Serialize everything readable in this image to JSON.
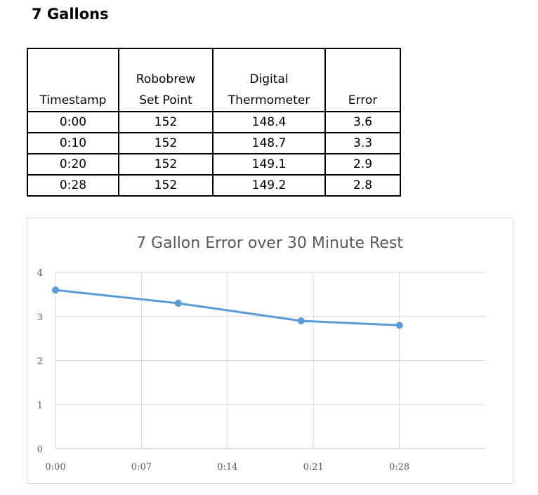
{
  "page": {
    "title": "7 Gallons"
  },
  "table": {
    "headers": [
      [
        "Timestamp"
      ],
      [
        "Robobrew",
        "Set Point"
      ],
      [
        "Digital",
        "Thermometer"
      ],
      [
        "Error"
      ]
    ],
    "rows": [
      [
        "0:00",
        "152",
        "148.4",
        "3.6"
      ],
      [
        "0:10",
        "152",
        "148.7",
        "3.3"
      ],
      [
        "0:20",
        "152",
        "149.1",
        "2.9"
      ],
      [
        "0:28",
        "152",
        "149.2",
        "2.8"
      ]
    ]
  },
  "chart_data": {
    "type": "line",
    "title": "7 Gallon Error over 30 Minute Rest",
    "xlabel": "",
    "ylabel": "",
    "x_unit": "minutes",
    "xlim": [
      0,
      35
    ],
    "ylim": [
      0,
      4
    ],
    "x_ticks": [
      0,
      7,
      14,
      21,
      28
    ],
    "x_tick_labels": [
      "0:00",
      "0:07",
      "0:14",
      "0:21",
      "0:28"
    ],
    "y_ticks": [
      0,
      1,
      2,
      3,
      4
    ],
    "y_tick_labels": [
      "0",
      "1",
      "2",
      "3",
      "4"
    ],
    "grid": true,
    "legend": "none",
    "series": [
      {
        "color": "#5b9bd5",
        "points": [
          {
            "x": 0,
            "y": 3.6
          },
          {
            "x": 10,
            "y": 3.3
          },
          {
            "x": 20,
            "y": 2.9
          },
          {
            "x": 28,
            "y": 2.8
          }
        ]
      }
    ]
  }
}
